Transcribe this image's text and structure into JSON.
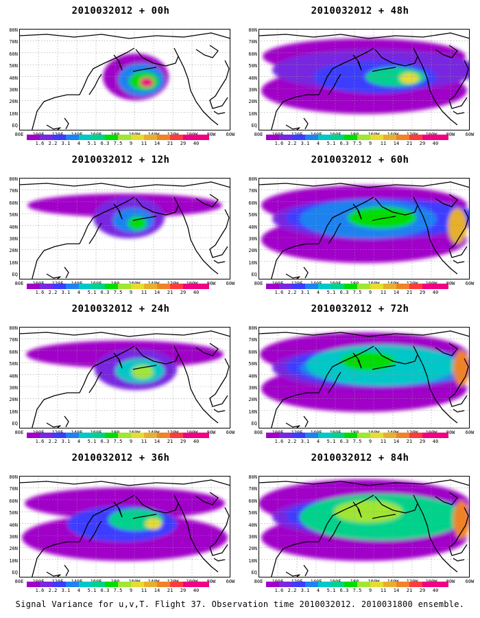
{
  "panels": [
    {
      "title": "2010032012 + 00h",
      "level": 0
    },
    {
      "title": "2010032012 + 12h",
      "level": 1
    },
    {
      "title": "2010032012 + 24h",
      "level": 2
    },
    {
      "title": "2010032012 + 36h",
      "level": 3
    },
    {
      "title": "2010032012 + 48h",
      "level": 4
    },
    {
      "title": "2010032012 + 60h",
      "level": 5
    },
    {
      "title": "2010032012 + 72h",
      "level": 6
    },
    {
      "title": "2010032012 + 84h",
      "level": 7
    }
  ],
  "colorbar": {
    "labels": [
      "1.6",
      "2.2",
      "3.1",
      "4",
      "5.1",
      "6.3",
      "7.5",
      "9",
      "11",
      "14",
      "21",
      "29",
      "40"
    ],
    "colors": [
      "#a000c8",
      "#7828e0",
      "#3c3cff",
      "#1e82f0",
      "#00c8c8",
      "#00d28c",
      "#00dc00",
      "#a0e632",
      "#e6dc32",
      "#e6af2d",
      "#f08228",
      "#fa3c3c",
      "#f00082"
    ]
  },
  "lat_labels": [
    "80N",
    "70N",
    "60N",
    "50N",
    "40N",
    "30N",
    "20N",
    "10N",
    "EQ"
  ],
  "lon_labels": [
    "80E",
    "100E",
    "120E",
    "140E",
    "160E",
    "180",
    "160W",
    "140W",
    "120W",
    "100W",
    "80W",
    "60W"
  ],
  "footer": "Signal Variance for u,v,T. Flight 37. Observation time 2010032012. 2010031800 ensemble."
}
